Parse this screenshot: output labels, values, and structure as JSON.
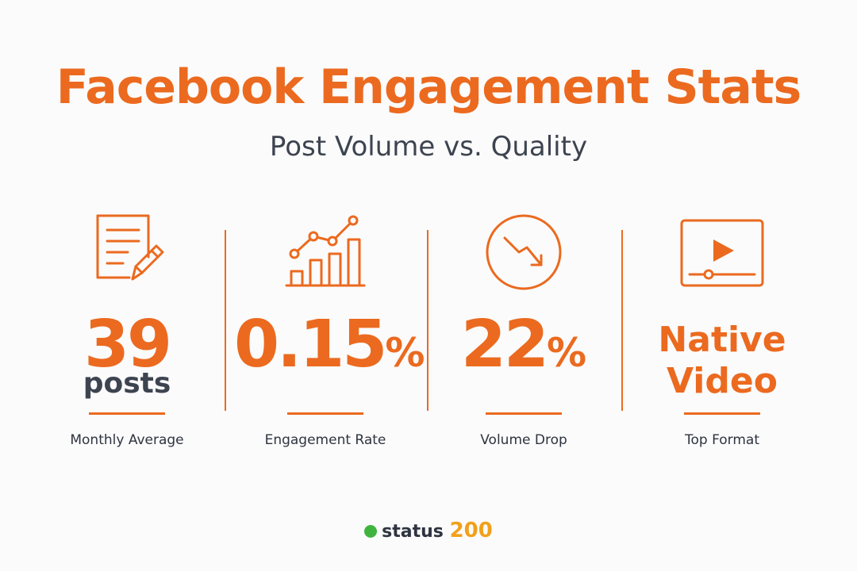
{
  "header": {
    "title": "Facebook Engagement Stats",
    "subtitle": "Post Volume vs. Quality"
  },
  "stats": [
    {
      "icon": "document-edit-icon",
      "value": "39",
      "unit": "posts",
      "label": "Monthly Average"
    },
    {
      "icon": "growth-chart-icon",
      "value": "0.15",
      "unit": "%",
      "label": "Engagement Rate"
    },
    {
      "icon": "trend-down-icon",
      "value": "22",
      "unit": "%",
      "label": "Volume Drop"
    },
    {
      "icon": "video-player-icon",
      "value_line1": "Native",
      "value_line2": "Video",
      "label": "Top Format"
    }
  ],
  "footer": {
    "brand_word": "status",
    "brand_number": "200",
    "status_icon": "green-status-dot-icon"
  },
  "colors": {
    "accent": "#eb6a1f",
    "text_dark": "#2e3440",
    "status_green": "#3fb53f",
    "brand_number": "#f2a01a"
  }
}
